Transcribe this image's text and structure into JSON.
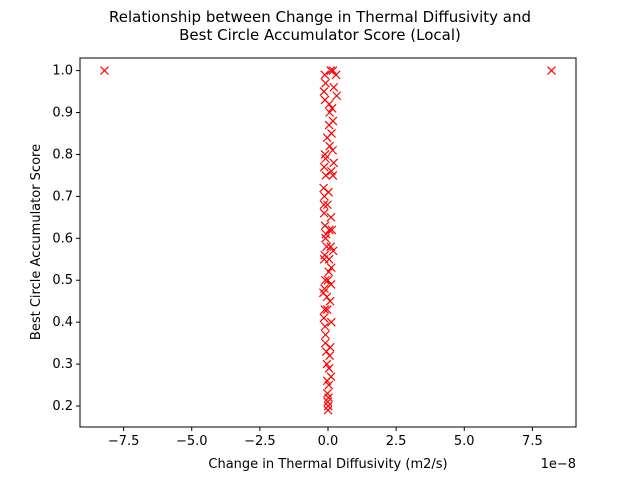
{
  "chart_data": {
    "type": "scatter",
    "title_lines": [
      "Relationship between Change in Thermal Diffusivity and",
      "Best Circle Accumulator Score (Local)"
    ],
    "xlabel": "Change in Thermal Diffusivity (m2/s)",
    "ylabel": "Best Circle Accumulator Score",
    "x_offset_label": "1e−8",
    "x_scale": 1e-08,
    "xlim": [
      -9.1e-08,
      9.1e-08
    ],
    "ylim": [
      0.15,
      1.03
    ],
    "x_ticks": [
      -7.5,
      -5.0,
      -2.5,
      0.0,
      2.5,
      5.0,
      7.5
    ],
    "x_tick_labels": [
      "−7.5",
      "−5.0",
      "−2.5",
      "0.0",
      "2.5",
      "5.0",
      "7.5"
    ],
    "y_ticks": [
      0.2,
      0.3,
      0.4,
      0.5,
      0.6,
      0.7,
      0.8,
      0.9,
      1.0
    ],
    "y_tick_labels": [
      "0.2",
      "0.3",
      "0.4",
      "0.5",
      "0.6",
      "0.7",
      "0.8",
      "0.9",
      "1.0"
    ],
    "marker": "x",
    "color": "#ff0000",
    "grid": false,
    "points": [
      [
        -8.2e-08,
        1.0
      ],
      [
        8.2e-08,
        1.0
      ],
      [
        -1.2e-09,
        0.99
      ],
      [
        1e-09,
        1.0
      ],
      [
        1.8e-09,
        1.0
      ],
      [
        3e-09,
        0.99
      ],
      [
        -9e-10,
        0.97
      ],
      [
        2.1e-09,
        0.96
      ],
      [
        -1.5e-09,
        0.95
      ],
      [
        3.2e-09,
        0.94
      ],
      [
        -1.1e-09,
        0.93
      ],
      [
        4.5e-10,
        0.92
      ],
      [
        1.5e-09,
        0.91
      ],
      [
        6e-10,
        0.9
      ],
      [
        1.8e-09,
        0.88
      ],
      [
        4e-10,
        0.87
      ],
      [
        1.3e-09,
        0.85
      ],
      [
        -3e-10,
        0.84
      ],
      [
        6e-10,
        0.82
      ],
      [
        1.7e-09,
        0.81
      ],
      [
        -1.1e-09,
        0.8
      ],
      [
        -9e-10,
        0.79
      ],
      [
        2.1e-09,
        0.78
      ],
      [
        -1.4e-09,
        0.77
      ],
      [
        1.2e-09,
        0.76
      ],
      [
        -8e-10,
        0.75
      ],
      [
        1.8e-09,
        0.75
      ],
      [
        -1.6e-09,
        0.72
      ],
      [
        -1.3e-09,
        0.7
      ],
      [
        -1.5e-09,
        0.68
      ],
      [
        -1.4e-09,
        0.66
      ],
      [
        1.1e-09,
        0.65
      ],
      [
        -1.1e-09,
        0.63
      ],
      [
        1.4e-09,
        0.62
      ],
      [
        -9e-10,
        0.6
      ],
      [
        1e-09,
        0.58
      ],
      [
        1.9e-09,
        0.57
      ],
      [
        -1.2e-09,
        0.56
      ],
      [
        -1.4e-09,
        0.55
      ],
      [
        1.2e-09,
        0.53
      ],
      [
        -1e-09,
        0.5
      ],
      [
        1.1e-09,
        0.49
      ],
      [
        -1.3e-09,
        0.48
      ],
      [
        -1.7e-09,
        0.47
      ],
      [
        8e-10,
        0.45
      ],
      [
        -1.2e-09,
        0.43
      ],
      [
        -1.5e-09,
        0.41
      ],
      [
        1.2e-09,
        0.4
      ],
      [
        -1.1e-09,
        0.39
      ],
      [
        -9e-10,
        0.37
      ],
      [
        -1e-09,
        0.35
      ],
      [
        8e-10,
        0.34
      ],
      [
        -6e-10,
        0.33
      ],
      [
        6e-10,
        0.32
      ],
      [
        -4e-10,
        0.3
      ],
      [
        4e-10,
        0.29
      ],
      [
        1.1e-09,
        0.27
      ],
      [
        -3e-10,
        0.26
      ],
      [
        3e-10,
        0.25
      ],
      [
        -2e-10,
        0.23
      ],
      [
        2e-10,
        0.22
      ],
      [
        -1e-10,
        0.21
      ],
      [
        1e-10,
        0.2
      ],
      [
        0,
        0.19
      ],
      [
        -3e-10,
        0.43
      ],
      [
        3e-10,
        0.52
      ],
      [
        -5e-10,
        0.58
      ],
      [
        5e-10,
        0.62
      ],
      [
        -2e-10,
        0.68
      ],
      [
        2e-10,
        0.71
      ],
      [
        -4e-10,
        0.46
      ],
      [
        4e-10,
        0.55
      ],
      [
        0,
        0.5
      ],
      [
        -7e-10,
        0.61
      ]
    ]
  }
}
